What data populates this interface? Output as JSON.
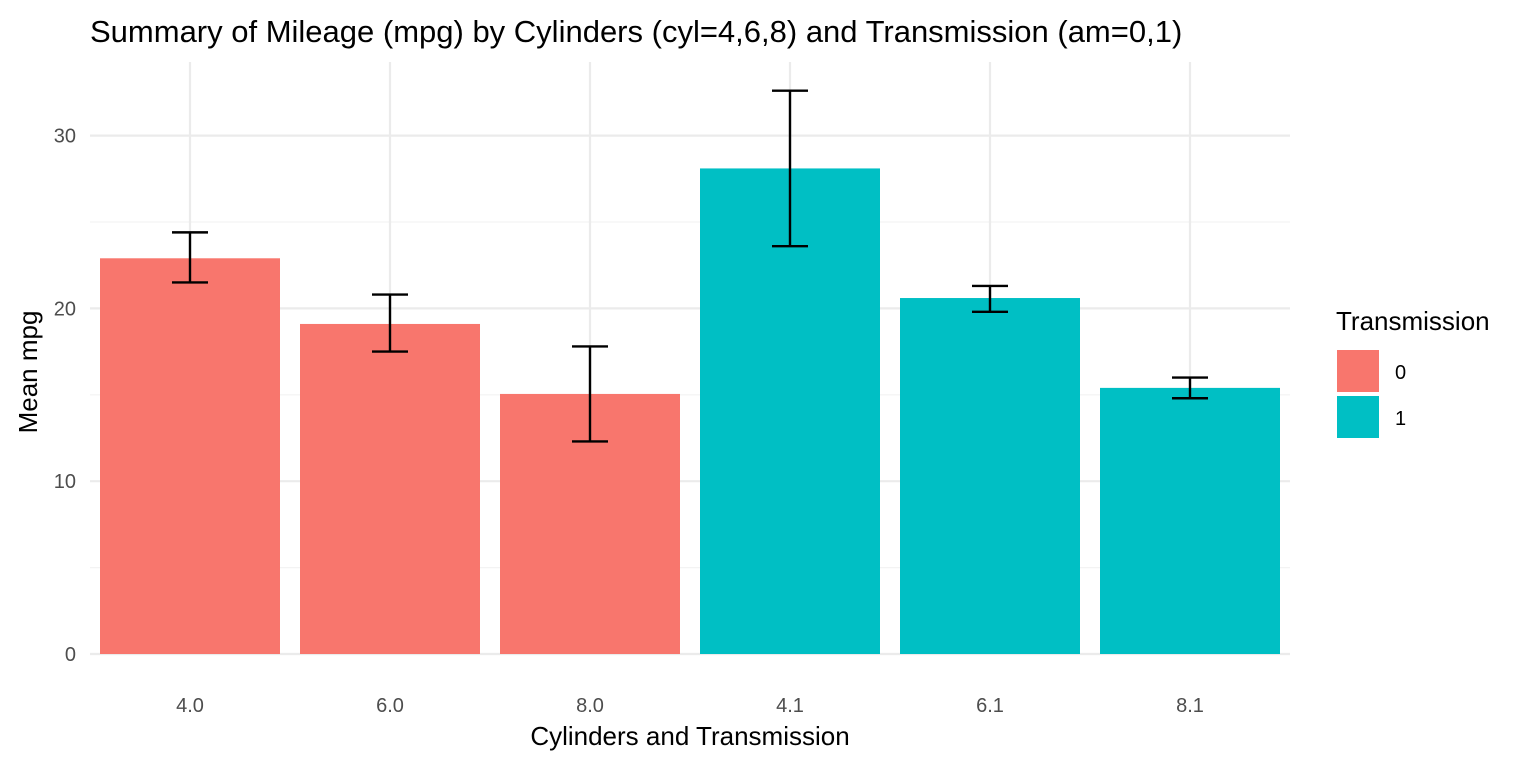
{
  "chart_data": {
    "type": "bar",
    "title": "Summary of Mileage (mpg) by Cylinders (cyl=4,6,8) and Transmission (am=0,1)",
    "xlabel": "Cylinders and Transmission",
    "ylabel": "Mean mpg",
    "categories": [
      "4.0",
      "6.0",
      "8.0",
      "4.1",
      "6.1",
      "8.1"
    ],
    "values": [
      22.9,
      19.1,
      15.05,
      28.1,
      20.6,
      15.4
    ],
    "error_low": [
      21.5,
      17.5,
      12.3,
      23.6,
      19.8,
      14.8
    ],
    "error_high": [
      24.4,
      20.8,
      17.8,
      32.6,
      21.3,
      16.0
    ],
    "group": [
      "0",
      "0",
      "0",
      "1",
      "1",
      "1"
    ],
    "ylim": [
      0,
      34
    ],
    "yticks": [
      0,
      10,
      20,
      30
    ],
    "grid": true,
    "legend": {
      "title": "Transmission",
      "position": "right",
      "items": [
        {
          "label": "0",
          "color": "#F8766D"
        },
        {
          "label": "1",
          "color": "#00BFC4"
        }
      ]
    }
  }
}
